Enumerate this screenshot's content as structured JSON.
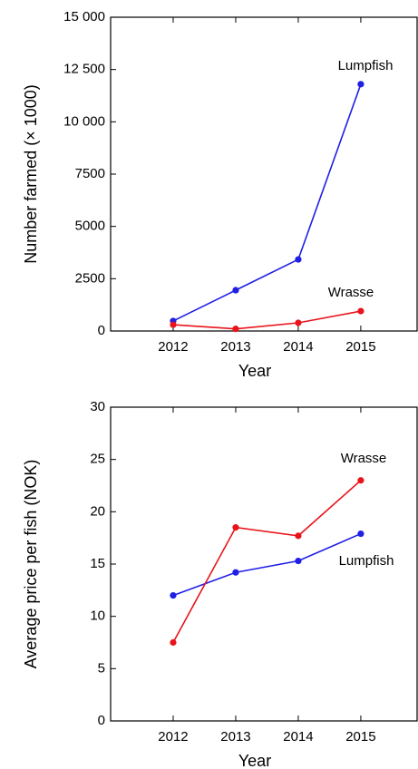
{
  "chart_data": [
    {
      "type": "line",
      "x": [
        2012,
        2013,
        2014,
        2015
      ],
      "xlim": [
        2011,
        2015.9
      ],
      "xticks": [
        2012,
        2013,
        2014,
        2015
      ],
      "ylim": [
        0,
        15000
      ],
      "yticks": [
        0,
        2500,
        5000,
        7500,
        {
          "value": 10000,
          "label": "10 000"
        },
        {
          "value": 12500,
          "label": "12 500"
        },
        {
          "value": 15000,
          "label": "15 000"
        }
      ],
      "x_label": "Year",
      "y_label": "Number farmed (× 1000)",
      "series": [
        {
          "name": "Lumpfish",
          "color": "#1f1fe6",
          "values": [
            480,
            1950,
            3420,
            11800
          ]
        },
        {
          "name": "Wrasse",
          "color": "#e8141b",
          "values": [
            300,
            100,
            390,
            950
          ]
        }
      ],
      "annotations": [
        "Lumpfish",
        "Wrasse"
      ]
    },
    {
      "type": "line",
      "x": [
        2012,
        2013,
        2014,
        2015
      ],
      "xlim": [
        2011,
        2015.9
      ],
      "xticks": [
        2012,
        2013,
        2014,
        2015
      ],
      "ylim": [
        0,
        30
      ],
      "yticks": [
        0,
        5,
        10,
        15,
        20,
        25,
        30
      ],
      "x_label": "Year",
      "y_label": "Average price per fish (NOK)",
      "series": [
        {
          "name": "Lumpfish",
          "color": "#1f1fe6",
          "values": [
            12.0,
            14.2,
            15.3,
            17.9
          ]
        },
        {
          "name": "Wrasse",
          "color": "#e8141b",
          "values": [
            7.5,
            18.5,
            17.7,
            23.0
          ]
        }
      ],
      "annotations": [
        "Wrasse",
        "Lumpfish"
      ]
    }
  ]
}
